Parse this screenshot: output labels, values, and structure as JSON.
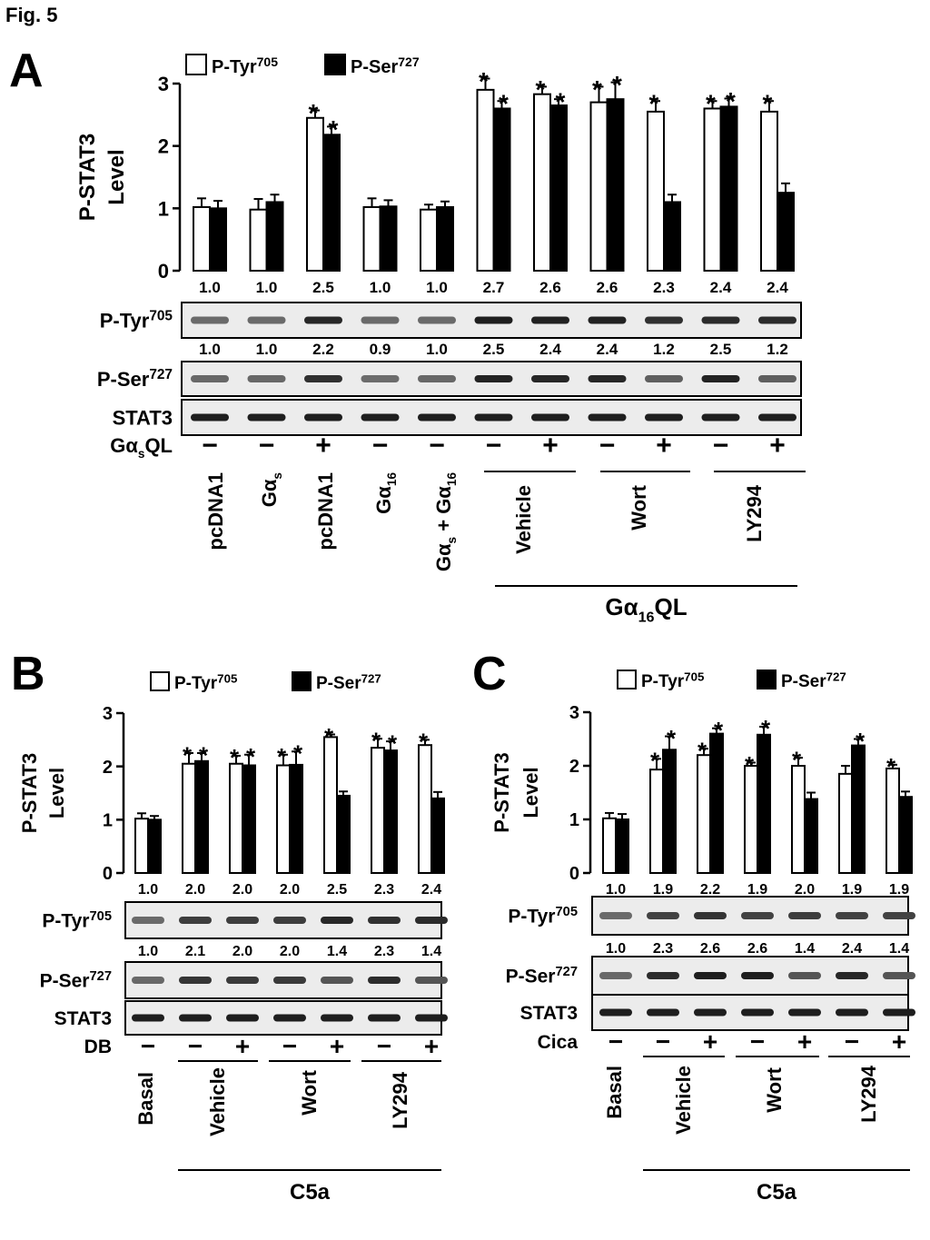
{
  "figure_label": "Fig. 5",
  "chart_data": [
    {
      "panel": "A",
      "type": "bar",
      "ylabel": "P-STAT3 Level",
      "ylim": [
        0,
        3
      ],
      "yticks": [
        "0",
        "1",
        "2",
        "3"
      ],
      "series": [
        {
          "name": "P-Tyr705",
          "values": [
            1.02,
            0.98,
            2.45,
            1.02,
            0.98,
            2.9,
            2.83,
            2.7,
            2.55,
            2.6,
            2.55
          ],
          "errors": [
            0.14,
            0.17,
            0.12,
            0.14,
            0.08,
            0.18,
            0.12,
            0.25,
            0.17,
            0.12,
            0.17
          ],
          "stars": [
            false,
            false,
            true,
            false,
            false,
            true,
            true,
            true,
            true,
            true,
            true
          ]
        },
        {
          "name": "P-Ser727",
          "values": [
            1.0,
            1.1,
            2.18,
            1.03,
            1.02,
            2.6,
            2.65,
            2.75,
            1.1,
            2.63,
            1.25
          ],
          "errors": [
            0.12,
            0.12,
            0.13,
            0.1,
            0.09,
            0.12,
            0.1,
            0.27,
            0.12,
            0.13,
            0.15
          ],
          "stars": [
            false,
            false,
            true,
            false,
            false,
            true,
            true,
            true,
            false,
            true,
            false
          ]
        }
      ],
      "legend": [
        "P-Tyr705",
        "P-Ser727"
      ],
      "tyr_quant": [
        "1.0",
        "1.0",
        "2.5",
        "1.0",
        "1.0",
        "2.7",
        "2.6",
        "2.6",
        "2.3",
        "2.4",
        "2.4"
      ],
      "ser_quant": [
        "1.0",
        "1.0",
        "2.2",
        "0.9",
        "1.0",
        "2.5",
        "2.4",
        "2.4",
        "1.2",
        "2.5",
        "1.2"
      ],
      "blot_labels": [
        "P-Tyr705",
        "P-Ser727",
        "STAT3"
      ],
      "treatment_label": "GαsQL",
      "treatment_signs": [
        "−",
        "−",
        "+",
        "−",
        "−",
        "−",
        "+",
        "−",
        "+",
        "−",
        "+"
      ],
      "lane_labels": [
        "pcDNA1",
        "Gαs",
        "pcDNA1",
        "Gα16",
        "Gαs + Gα16",
        "Vehicle",
        "Wort",
        "LY294"
      ],
      "group_label": "Gα16QL"
    },
    {
      "panel": "B",
      "type": "bar",
      "ylabel": "P-STAT3 Level",
      "ylim": [
        0,
        3
      ],
      "yticks": [
        "0",
        "1",
        "2",
        "3"
      ],
      "series": [
        {
          "name": "P-Tyr705",
          "values": [
            1.02,
            2.05,
            2.05,
            2.02,
            2.55,
            2.35,
            2.4
          ],
          "errors": [
            0.1,
            0.2,
            0.15,
            0.2,
            0.05,
            0.17,
            0.1
          ],
          "stars": [
            false,
            true,
            true,
            true,
            true,
            true,
            true
          ]
        },
        {
          "name": "P-Ser727",
          "values": [
            1.0,
            2.1,
            2.02,
            2.03,
            1.45,
            2.3,
            1.4
          ],
          "errors": [
            0.07,
            0.15,
            0.2,
            0.25,
            0.08,
            0.17,
            0.12
          ],
          "stars": [
            false,
            true,
            true,
            true,
            false,
            true,
            false
          ]
        }
      ],
      "legend": [
        "P-Tyr705",
        "P-Ser727"
      ],
      "tyr_quant": [
        "1.0",
        "2.0",
        "2.0",
        "2.0",
        "2.5",
        "2.3",
        "2.4"
      ],
      "ser_quant": [
        "1.0",
        "2.1",
        "2.0",
        "2.0",
        "1.4",
        "2.3",
        "1.4"
      ],
      "blot_labels": [
        "P-Tyr705",
        "P-Ser727",
        "STAT3"
      ],
      "treatment_label": "DB",
      "treatment_signs": [
        "−",
        "−",
        "+",
        "−",
        "+",
        "−",
        "+"
      ],
      "lane_labels": [
        "Basal",
        "Vehicle",
        "Wort",
        "LY294"
      ],
      "group_label": "C5a"
    },
    {
      "panel": "C",
      "type": "bar",
      "ylabel": "P-STAT3 Level",
      "ylim": [
        0,
        3
      ],
      "yticks": [
        "0",
        "1",
        "2",
        "3"
      ],
      "series": [
        {
          "name": "P-Tyr705",
          "values": [
            1.02,
            1.93,
            2.2,
            2.0,
            2.0,
            1.85,
            1.95
          ],
          "errors": [
            0.1,
            0.2,
            0.12,
            0.06,
            0.15,
            0.15,
            0.07
          ],
          "stars": [
            false,
            true,
            true,
            true,
            true,
            false,
            true
          ]
        },
        {
          "name": "P-Ser727",
          "values": [
            1.0,
            2.3,
            2.6,
            2.58,
            1.38,
            2.38,
            1.42
          ],
          "errors": [
            0.1,
            0.25,
            0.1,
            0.15,
            0.12,
            0.12,
            0.1
          ],
          "stars": [
            false,
            true,
            true,
            true,
            false,
            true,
            false
          ]
        }
      ],
      "legend": [
        "P-Tyr705",
        "P-Ser727"
      ],
      "tyr_quant": [
        "1.0",
        "1.9",
        "2.2",
        "1.9",
        "2.0",
        "1.9",
        "1.9"
      ],
      "ser_quant": [
        "1.0",
        "2.3",
        "2.6",
        "2.6",
        "1.4",
        "2.4",
        "1.4"
      ],
      "blot_labels": [
        "P-Tyr705",
        "P-Ser727",
        "STAT3"
      ],
      "treatment_label": "Cica",
      "treatment_signs": [
        "−",
        "−",
        "+",
        "−",
        "+",
        "−",
        "+"
      ],
      "lane_labels": [
        "Basal",
        "Vehicle",
        "Wort",
        "LY294"
      ],
      "group_label": "C5a"
    }
  ]
}
